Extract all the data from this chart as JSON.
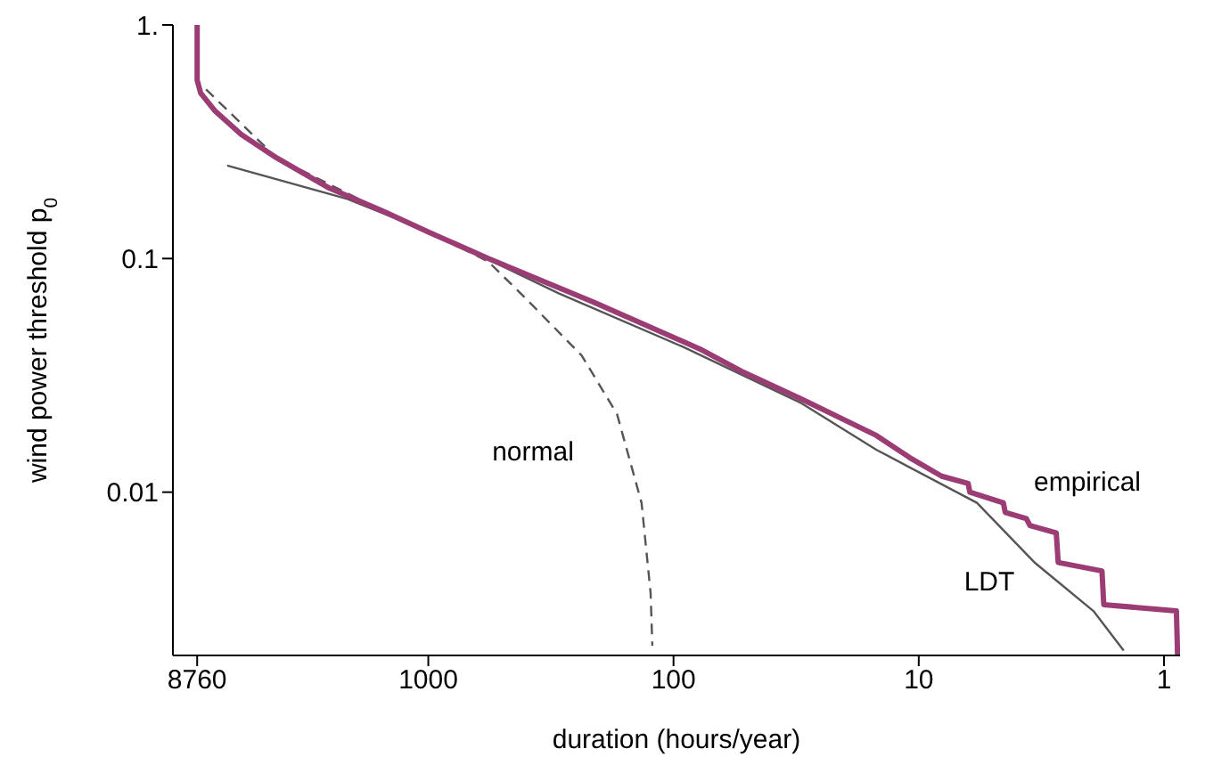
{
  "chart_data": {
    "type": "line",
    "xlabel": "duration (hours/year)",
    "ylabel": "wind power threshold p$_{0}$",
    "log": "xy",
    "xlim": [
      11000,
      0.86
    ],
    "ylim": [
      0.002,
      1
    ],
    "xticks": [
      8760,
      1000,
      100,
      10,
      1
    ],
    "yticks": [
      {
        "value": 1,
        "label": "1."
      },
      0.1,
      0.01
    ],
    "grid": false,
    "legend": false,
    "marker": "none",
    "series": [
      {
        "line_style": "dashed",
        "color": "#555555",
        "x": [
          8060,
          4160,
          1540,
          770,
          569,
          409,
          237,
          170,
          135,
          124,
          122
        ],
        "values": [
          0.53,
          0.27,
          0.16,
          0.114,
          0.097,
          0.069,
          0.0385,
          0.0216,
          0.009,
          0.0037,
          0.0022
        ]
      },
      {
        "line_style": "solid",
        "color": "#555555",
        "x": [
          6610,
          2140,
          935,
          569,
          294,
          92,
          30,
          14.9,
          5.79,
          3.35,
          1.94,
          1.46
        ],
        "values": [
          0.25,
          0.18,
          0.127,
          0.099,
          0.071,
          0.042,
          0.024,
          0.0152,
          0.009,
          0.00497,
          0.0031,
          0.0021
        ]
      },
      {
        "line_style": "solid",
        "color": "#9b3d74",
        "x": [
          8760,
          8760,
          8470,
          7430,
          5790,
          4160,
          2530,
          1540,
          1000,
          569,
          211,
          78,
          53,
          30,
          14.9,
          10.7,
          8.06,
          6.29,
          6.19,
          4.52,
          4.44,
          3.64,
          3.52,
          2.75,
          2.7,
          1.79,
          1.76,
          0.89,
          0.88
        ],
        "values": [
          1,
          0.58,
          0.51,
          0.43,
          0.34,
          0.27,
          0.2,
          0.16,
          0.13,
          0.1,
          0.065,
          0.041,
          0.033,
          0.025,
          0.0175,
          0.0139,
          0.0117,
          0.0109,
          0.01,
          0.009,
          0.0082,
          0.0077,
          0.0072,
          0.0067,
          0.005,
          0.0046,
          0.0033,
          0.0031,
          0.002
        ]
      }
    ],
    "annotations": [
      "normal",
      "empirical",
      "LDT"
    ]
  }
}
